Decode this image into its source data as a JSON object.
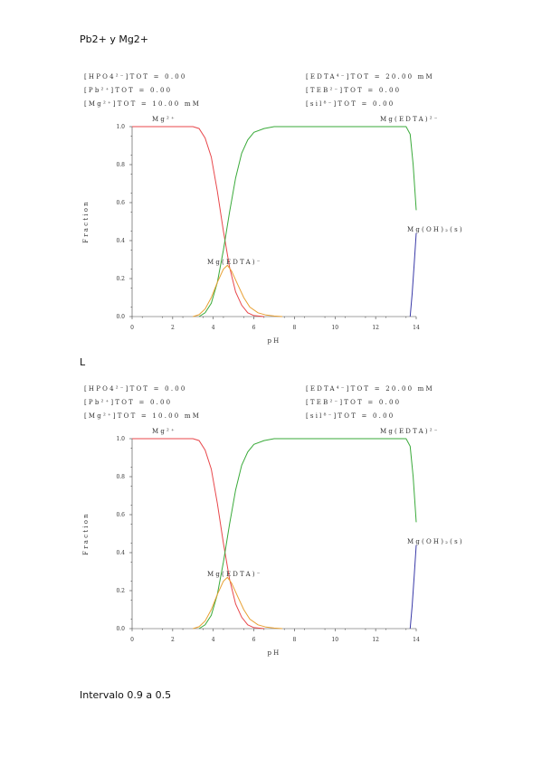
{
  "heading_top": "Pb2+  y Mg2+",
  "heading_mid": "L",
  "heading_bottom": "Intervalo 0.9 a 0.5",
  "chart_data": [
    {
      "type": "line",
      "xlabel": "pH",
      "ylabel": "Fraction",
      "xlim": [
        0,
        14
      ],
      "ylim": [
        0,
        1
      ],
      "xticks": [
        "0",
        "2",
        "4",
        "6",
        "8",
        "10",
        "12",
        "14"
      ],
      "yticks": [
        "0.0",
        "0.2",
        "0.4",
        "0.6",
        "0.8",
        "1.0"
      ],
      "conditions_left": [
        "[HPO4²⁻]TOT =    0.00",
        "[Pb²⁺]TOT =    0.00",
        "[Mg²⁺]TOT =  10.00 mM"
      ],
      "conditions_right": [
        "[EDTA⁴⁻]TOT =  20.00 mM",
        "[TEB²⁻]TOT =    0.00",
        "[sil⁸⁻]TOT =    0.00"
      ],
      "series": [
        {
          "name": "Mg²⁺",
          "color": "#e8474b",
          "x": [
            0,
            2,
            3,
            3.3,
            3.6,
            3.9,
            4.2,
            4.5,
            4.8,
            5.1,
            5.4,
            5.7,
            6.0,
            6.5
          ],
          "y": [
            1.0,
            1.0,
            1.0,
            0.99,
            0.94,
            0.84,
            0.66,
            0.45,
            0.26,
            0.13,
            0.06,
            0.02,
            0.005,
            0
          ]
        },
        {
          "name": "Mg(EDTA)²⁻",
          "color": "#3aaa3a",
          "x": [
            3.3,
            3.6,
            3.9,
            4.2,
            4.5,
            4.8,
            5.1,
            5.4,
            5.7,
            6.0,
            6.5,
            7.0,
            8.0,
            10,
            12,
            13.5,
            13.7,
            13.85,
            14.0
          ],
          "y": [
            0.0,
            0.02,
            0.07,
            0.18,
            0.35,
            0.55,
            0.73,
            0.86,
            0.93,
            0.97,
            0.99,
            1.0,
            1.0,
            1.0,
            1.0,
            1.0,
            0.96,
            0.8,
            0.56
          ]
        },
        {
          "name": "Mg(EDTA)⁻",
          "color": "#e8a033",
          "x": [
            3.0,
            3.3,
            3.6,
            3.9,
            4.2,
            4.5,
            4.7,
            4.9,
            5.2,
            5.5,
            5.8,
            6.2,
            6.6,
            7.0,
            7.4
          ],
          "y": [
            0.0,
            0.01,
            0.04,
            0.1,
            0.18,
            0.25,
            0.27,
            0.24,
            0.17,
            0.1,
            0.05,
            0.02,
            0.008,
            0.003,
            0
          ]
        },
        {
          "name": "Mg(OH)₂(s)",
          "color": "#3a3aa8",
          "x": [
            13.7,
            13.8,
            13.9,
            14.0
          ],
          "y": [
            0.0,
            0.12,
            0.28,
            0.44
          ]
        }
      ]
    },
    {
      "type": "line",
      "xlabel": "pH",
      "ylabel": "Fraction",
      "xlim": [
        0,
        14
      ],
      "ylim": [
        0,
        1
      ],
      "xticks": [
        "0",
        "2",
        "4",
        "6",
        "8",
        "10",
        "12",
        "14"
      ],
      "yticks": [
        "0.0",
        "0.2",
        "0.4",
        "0.6",
        "0.8",
        "1.0"
      ],
      "conditions_left": [
        "[HPO4²⁻]TOT =    0.00",
        "[Pb²⁺]TOT =    0.00",
        "[Mg²⁺]TOT =  10.00 mM"
      ],
      "conditions_right": [
        "[EDTA⁴⁻]TOT =  20.00 mM",
        "[TEB²⁻]TOT =    0.00",
        "[sil⁸⁻]TOT =    0.00"
      ],
      "series": [
        {
          "name": "Mg²⁺",
          "color": "#e8474b",
          "x": [
            0,
            2,
            3,
            3.3,
            3.6,
            3.9,
            4.2,
            4.5,
            4.8,
            5.1,
            5.4,
            5.7,
            6.0,
            6.5
          ],
          "y": [
            1.0,
            1.0,
            1.0,
            0.99,
            0.94,
            0.84,
            0.66,
            0.45,
            0.26,
            0.13,
            0.06,
            0.02,
            0.005,
            0
          ]
        },
        {
          "name": "Mg(EDTA)²⁻",
          "color": "#3aaa3a",
          "x": [
            3.3,
            3.6,
            3.9,
            4.2,
            4.5,
            4.8,
            5.1,
            5.4,
            5.7,
            6.0,
            6.5,
            7.0,
            8.0,
            10,
            12,
            13.5,
            13.7,
            13.85,
            14.0
          ],
          "y": [
            0.0,
            0.02,
            0.07,
            0.18,
            0.35,
            0.55,
            0.73,
            0.86,
            0.93,
            0.97,
            0.99,
            1.0,
            1.0,
            1.0,
            1.0,
            1.0,
            0.96,
            0.8,
            0.56
          ]
        },
        {
          "name": "Mg(EDTA)⁻",
          "color": "#e8a033",
          "x": [
            3.0,
            3.3,
            3.6,
            3.9,
            4.2,
            4.5,
            4.7,
            4.9,
            5.2,
            5.5,
            5.8,
            6.2,
            6.6,
            7.0,
            7.4
          ],
          "y": [
            0.0,
            0.01,
            0.04,
            0.1,
            0.18,
            0.25,
            0.27,
            0.24,
            0.17,
            0.1,
            0.05,
            0.02,
            0.008,
            0.003,
            0
          ]
        },
        {
          "name": "Mg(OH)₂(s)",
          "color": "#3a3aa8",
          "x": [
            13.7,
            13.8,
            13.9,
            14.0
          ],
          "y": [
            0.0,
            0.12,
            0.28,
            0.44
          ]
        }
      ]
    }
  ]
}
